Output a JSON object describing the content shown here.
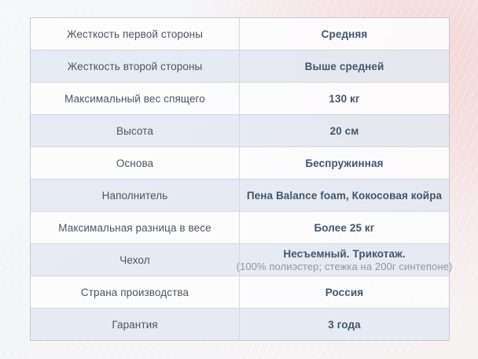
{
  "page": {
    "background_accent_color": "#f6c7c7",
    "row_odd_bg": "#fcfcfd",
    "row_even_bg": "#e4e8f1",
    "border_color": "#c4c9d3",
    "label_text_color": "#4c5562",
    "value_text_color": "#44566c",
    "sub_text_color": "#8e97a8"
  },
  "table": {
    "rows": [
      {
        "label": "Жесткость первой стороны",
        "value": "Средняя"
      },
      {
        "label": "Жесткость второй стороны",
        "value": "Выше средней"
      },
      {
        "label": "Максимальный вес спящего",
        "value": "130 кг"
      },
      {
        "label": "Высота",
        "value": "20 см"
      },
      {
        "label": "Основа",
        "value": "Беспружинная"
      },
      {
        "label": "Наполнитель",
        "value": "Пена Balance foam, Кокосовая койра"
      },
      {
        "label": "Максимальная разница в весе",
        "value": "Более 25 кг"
      },
      {
        "label": "Чехол",
        "value": "Несъемный. Трикотаж.",
        "value_sub": "(100% полиэстер; стежка на 200г синтепоне)"
      },
      {
        "label": "Страна производства",
        "value": "Россия"
      },
      {
        "label": "Гарантия",
        "value": "3 года"
      }
    ]
  }
}
